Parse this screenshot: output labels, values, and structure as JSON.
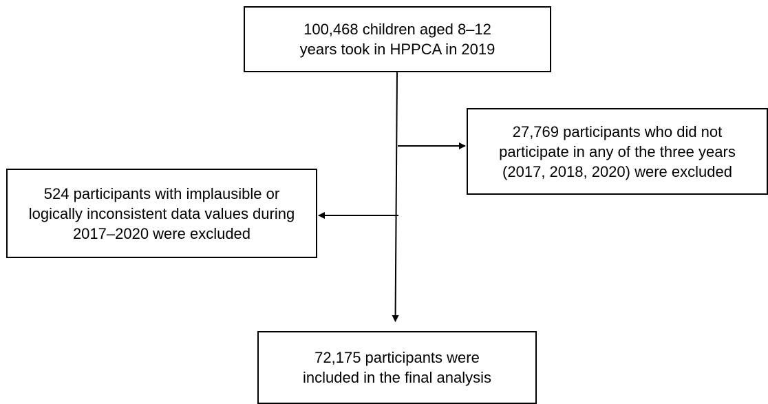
{
  "flowchart": {
    "start": {
      "lines": [
        "100,468 children aged 8–12",
        "years took in HPPCA in 2019"
      ]
    },
    "exclusion_1": {
      "lines": [
        "27,769 participants who did not",
        "participate in any of the three years",
        "(2017, 2018, 2020) were excluded"
      ]
    },
    "exclusion_2": {
      "lines": [
        "524 participants with implausible or",
        "logically inconsistent data values during",
        "2017–2020 were excluded"
      ]
    },
    "final": {
      "lines": [
        "72,175 participants were",
        "included in the final analysis"
      ]
    }
  },
  "colors": {
    "stroke": "#000000",
    "background": "#ffffff"
  }
}
